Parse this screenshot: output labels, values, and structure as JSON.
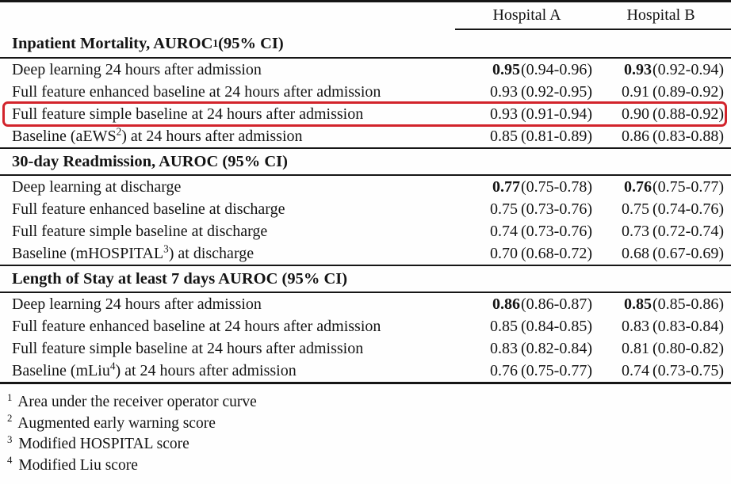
{
  "columns": {
    "a": "Hospital A",
    "b": "Hospital B"
  },
  "annotation": {
    "color": "#d2232b",
    "highlighted_row": "Full feature simple baseline at 24 hours after admission"
  },
  "sections": [
    {
      "title_pre": "Inpatient Mortality, AUROC",
      "title_sup": "1",
      "title_post": "(95% CI)",
      "rows": [
        {
          "label_pre": "Deep learning 24 hours after admission",
          "label_sup": "",
          "label_post": "",
          "bold": true,
          "highlighted": false,
          "a_auroc": "0.95",
          "a_ci": "(0.94-0.96)",
          "b_auroc": "0.93",
          "b_ci": "(0.92-0.94)"
        },
        {
          "label_pre": "Full feature enhanced baseline at 24 hours after admission",
          "label_sup": "",
          "label_post": "",
          "bold": false,
          "highlighted": false,
          "a_auroc": "0.93",
          "a_ci": "(0.92-0.95)",
          "b_auroc": "0.91",
          "b_ci": "(0.89-0.92)"
        },
        {
          "label_pre": "Full feature simple baseline at 24 hours after admission",
          "label_sup": "",
          "label_post": "",
          "bold": false,
          "highlighted": true,
          "a_auroc": "0.93",
          "a_ci": "(0.91-0.94)",
          "b_auroc": "0.90",
          "b_ci": "(0.88-0.92)"
        },
        {
          "label_pre": "Baseline (aEWS",
          "label_sup": "2",
          "label_post": ") at 24 hours after admission",
          "bold": false,
          "highlighted": false,
          "a_auroc": "0.85",
          "a_ci": "(0.81-0.89)",
          "b_auroc": "0.86",
          "b_ci": "(0.83-0.88)"
        }
      ]
    },
    {
      "title_pre": "30-day Readmission, AUROC (95% CI)",
      "title_sup": "",
      "title_post": "",
      "rows": [
        {
          "label_pre": "Deep learning at discharge",
          "label_sup": "",
          "label_post": "",
          "bold": true,
          "highlighted": false,
          "a_auroc": "0.77",
          "a_ci": "(0.75-0.78)",
          "b_auroc": "0.76",
          "b_ci": "(0.75-0.77)"
        },
        {
          "label_pre": "Full feature enhanced baseline at discharge",
          "label_sup": "",
          "label_post": "",
          "bold": false,
          "highlighted": false,
          "a_auroc": "0.75",
          "a_ci": "(0.73-0.76)",
          "b_auroc": "0.75",
          "b_ci": "(0.74-0.76)"
        },
        {
          "label_pre": "Full feature simple baseline at discharge",
          "label_sup": "",
          "label_post": "",
          "bold": false,
          "highlighted": false,
          "a_auroc": "0.74",
          "a_ci": "(0.73-0.76)",
          "b_auroc": "0.73",
          "b_ci": "(0.72-0.74)"
        },
        {
          "label_pre": "Baseline (mHOSPITAL",
          "label_sup": "3",
          "label_post": ") at discharge",
          "bold": false,
          "highlighted": false,
          "a_auroc": "0.70",
          "a_ci": "(0.68-0.72)",
          "b_auroc": "0.68",
          "b_ci": "(0.67-0.69)"
        }
      ]
    },
    {
      "title_pre": "Length of Stay at least 7 days AUROC (95% CI)",
      "title_sup": "",
      "title_post": "",
      "rows": [
        {
          "label_pre": "Deep learning 24 hours after admission",
          "label_sup": "",
          "label_post": "",
          "bold": true,
          "highlighted": false,
          "a_auroc": "0.86",
          "a_ci": "(0.86-0.87)",
          "b_auroc": "0.85",
          "b_ci": "(0.85-0.86)"
        },
        {
          "label_pre": "Full feature enhanced baseline at 24 hours after admission",
          "label_sup": "",
          "label_post": "",
          "bold": false,
          "highlighted": false,
          "a_auroc": "0.85",
          "a_ci": "(0.84-0.85)",
          "b_auroc": "0.83",
          "b_ci": "(0.83-0.84)"
        },
        {
          "label_pre": "Full feature simple baseline at 24 hours after admission",
          "label_sup": "",
          "label_post": "",
          "bold": false,
          "highlighted": false,
          "a_auroc": "0.83",
          "a_ci": "(0.82-0.84)",
          "b_auroc": "0.81",
          "b_ci": "(0.80-0.82)"
        },
        {
          "label_pre": "Baseline (mLiu",
          "label_sup": "4",
          "label_post": ") at 24 hours after admission",
          "bold": false,
          "highlighted": false,
          "a_auroc": "0.76",
          "a_ci": "(0.75-0.77)",
          "b_auroc": "0.74",
          "b_ci": "(0.73-0.75)"
        }
      ]
    }
  ],
  "footnotes": [
    {
      "sup": "1",
      "text": "Area under the receiver operator curve"
    },
    {
      "sup": "2",
      "text": "Augmented early warning score"
    },
    {
      "sup": "3",
      "text": "Modified HOSPITAL score"
    },
    {
      "sup": "4",
      "text": "Modified Liu score"
    }
  ]
}
